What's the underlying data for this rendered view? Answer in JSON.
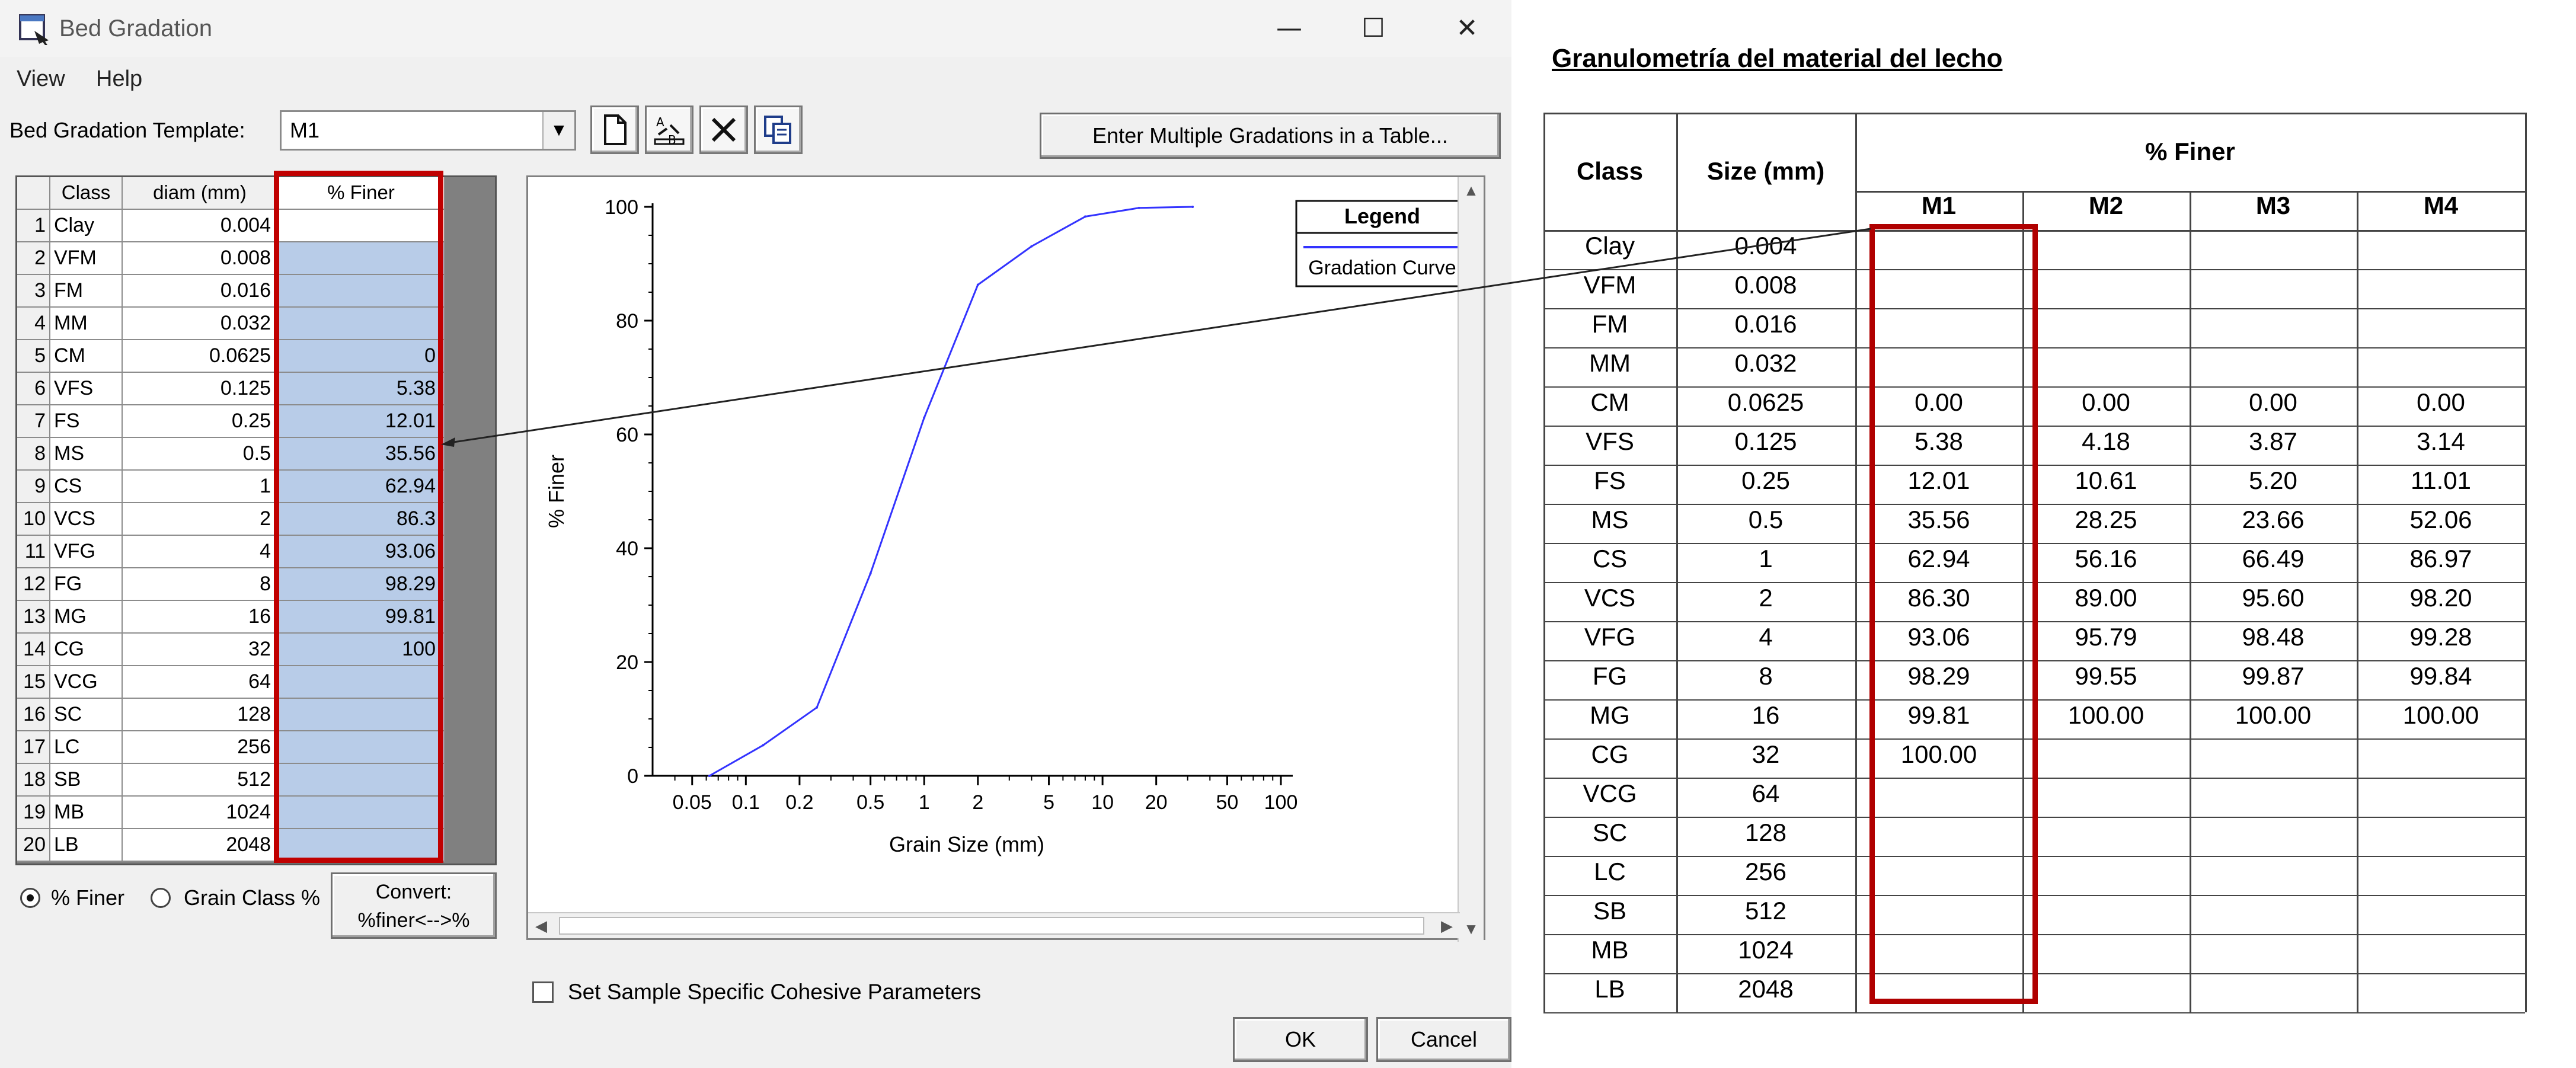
{
  "dialog": {
    "title": "Bed Gradation",
    "menu": [
      "View",
      "Help"
    ],
    "template_label": "Bed Gradation Template:",
    "template_value": "M1",
    "toolbar_icons": [
      "new-document-icon",
      "rename-icon",
      "delete-icon",
      "copy-icon"
    ],
    "multi_button": "Enter Multiple Gradations in a Table...",
    "grid": {
      "headers": [
        "Class",
        "diam (mm)",
        "% Finer"
      ],
      "rows": [
        {
          "n": "1",
          "cls": "Clay",
          "diam": "0.004",
          "finer": ""
        },
        {
          "n": "2",
          "cls": "VFM",
          "diam": "0.008",
          "finer": ""
        },
        {
          "n": "3",
          "cls": "FM",
          "diam": "0.016",
          "finer": ""
        },
        {
          "n": "4",
          "cls": "MM",
          "diam": "0.032",
          "finer": ""
        },
        {
          "n": "5",
          "cls": "CM",
          "diam": "0.0625",
          "finer": "0"
        },
        {
          "n": "6",
          "cls": "VFS",
          "diam": "0.125",
          "finer": "5.38"
        },
        {
          "n": "7",
          "cls": "FS",
          "diam": "0.25",
          "finer": "12.01"
        },
        {
          "n": "8",
          "cls": "MS",
          "diam": "0.5",
          "finer": "35.56"
        },
        {
          "n": "9",
          "cls": "CS",
          "diam": "1",
          "finer": "62.94"
        },
        {
          "n": "10",
          "cls": "VCS",
          "diam": "2",
          "finer": "86.3"
        },
        {
          "n": "11",
          "cls": "VFG",
          "diam": "4",
          "finer": "93.06"
        },
        {
          "n": "12",
          "cls": "FG",
          "diam": "8",
          "finer": "98.29"
        },
        {
          "n": "13",
          "cls": "MG",
          "diam": "16",
          "finer": "99.81"
        },
        {
          "n": "14",
          "cls": "CG",
          "diam": "32",
          "finer": "100"
        },
        {
          "n": "15",
          "cls": "VCG",
          "diam": "64",
          "finer": ""
        },
        {
          "n": "16",
          "cls": "SC",
          "diam": "128",
          "finer": ""
        },
        {
          "n": "17",
          "cls": "LC",
          "diam": "256",
          "finer": ""
        },
        {
          "n": "18",
          "cls": "SB",
          "diam": "512",
          "finer": ""
        },
        {
          "n": "19",
          "cls": "MB",
          "diam": "1024",
          "finer": ""
        },
        {
          "n": "20",
          "cls": "LB",
          "diam": "2048",
          "finer": ""
        }
      ]
    },
    "radio_finer": "% Finer",
    "radio_grain": "Grain Class %",
    "radio_selected": "% Finer",
    "convert_line1": "Convert:",
    "convert_line2": "%finer<-->%",
    "cohesive_label": "Set Sample Specific Cohesive Parameters",
    "ok": "OK",
    "cancel": "Cancel",
    "highlight_color": "#c00000"
  },
  "chart_data": {
    "type": "line",
    "title": "",
    "xlabel": "Grain Size (mm)",
    "ylabel": "% Finer",
    "xscale": "log",
    "xlim": [
      0.03,
      100
    ],
    "ylim": [
      0,
      100
    ],
    "xticks": [
      0.05,
      0.1,
      0.2,
      0.5,
      1,
      2,
      5,
      10,
      20,
      50,
      100
    ],
    "xtick_labels": [
      "0.05",
      "0.1",
      "0.2",
      "0.5",
      "1",
      "2",
      "5",
      "10",
      "20",
      "50",
      "100"
    ],
    "yticks": [
      0,
      20,
      40,
      60,
      80,
      100
    ],
    "ytick_labels": [
      "0",
      "20",
      "40",
      "60",
      "80",
      "100"
    ],
    "legend_title": "Legend",
    "legend_placement": "top-right",
    "series": [
      {
        "name": "Gradation Curve",
        "color": "#3333ff",
        "x": [
          0.0625,
          0.125,
          0.25,
          0.5,
          1,
          2,
          4,
          8,
          16,
          32
        ],
        "y": [
          0,
          5.38,
          12.01,
          35.56,
          62.94,
          86.3,
          93.06,
          98.29,
          99.81,
          100
        ]
      }
    ]
  },
  "sheet": {
    "title": "Granulometría del material del lecho",
    "head_class": "Class",
    "head_size": "Size (mm)",
    "head_finer": "% Finer",
    "samples": [
      "M1",
      "M2",
      "M3",
      "M4"
    ],
    "rows": [
      {
        "cls": "Clay",
        "size": "0.004",
        "v": [
          "",
          "",
          "",
          ""
        ]
      },
      {
        "cls": "VFM",
        "size": "0.008",
        "v": [
          "",
          "",
          "",
          ""
        ]
      },
      {
        "cls": "FM",
        "size": "0.016",
        "v": [
          "",
          "",
          "",
          ""
        ]
      },
      {
        "cls": "MM",
        "size": "0.032",
        "v": [
          "",
          "",
          "",
          ""
        ]
      },
      {
        "cls": "CM",
        "size": "0.0625",
        "v": [
          "0.00",
          "0.00",
          "0.00",
          "0.00"
        ]
      },
      {
        "cls": "VFS",
        "size": "0.125",
        "v": [
          "5.38",
          "4.18",
          "3.87",
          "3.14"
        ]
      },
      {
        "cls": "FS",
        "size": "0.25",
        "v": [
          "12.01",
          "10.61",
          "5.20",
          "11.01"
        ]
      },
      {
        "cls": "MS",
        "size": "0.5",
        "v": [
          "35.56",
          "28.25",
          "23.66",
          "52.06"
        ]
      },
      {
        "cls": "CS",
        "size": "1",
        "v": [
          "62.94",
          "56.16",
          "66.49",
          "86.97"
        ]
      },
      {
        "cls": "VCS",
        "size": "2",
        "v": [
          "86.30",
          "89.00",
          "95.60",
          "98.20"
        ]
      },
      {
        "cls": "VFG",
        "size": "4",
        "v": [
          "93.06",
          "95.79",
          "98.48",
          "99.28"
        ]
      },
      {
        "cls": "FG",
        "size": "8",
        "v": [
          "98.29",
          "99.55",
          "99.87",
          "99.84"
        ]
      },
      {
        "cls": "MG",
        "size": "16",
        "v": [
          "99.81",
          "100.00",
          "100.00",
          "100.00"
        ]
      },
      {
        "cls": "CG",
        "size": "32",
        "v": [
          "100.00",
          "",
          "",
          ""
        ]
      },
      {
        "cls": "VCG",
        "size": "64",
        "v": [
          "",
          "",
          "",
          ""
        ]
      },
      {
        "cls": "SC",
        "size": "128",
        "v": [
          "",
          "",
          "",
          ""
        ]
      },
      {
        "cls": "LC",
        "size": "256",
        "v": [
          "",
          "",
          "",
          ""
        ]
      },
      {
        "cls": "SB",
        "size": "512",
        "v": [
          "",
          "",
          "",
          ""
        ]
      },
      {
        "cls": "MB",
        "size": "1024",
        "v": [
          "",
          "",
          "",
          ""
        ]
      },
      {
        "cls": "LB",
        "size": "2048",
        "v": [
          "",
          "",
          "",
          ""
        ]
      }
    ]
  }
}
